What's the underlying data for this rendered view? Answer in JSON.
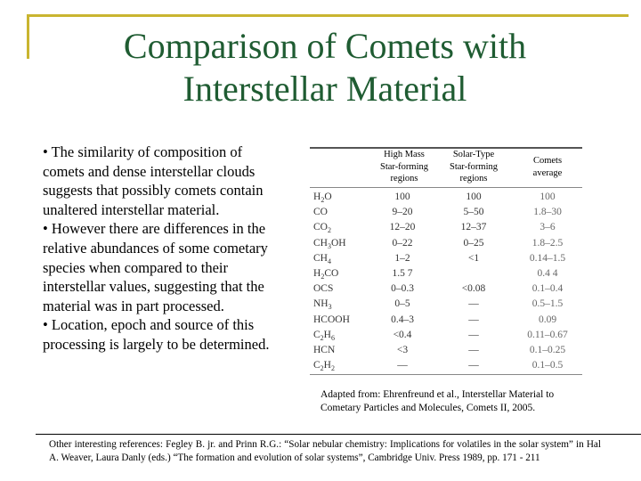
{
  "title": {
    "line1": "Comparison of Comets with",
    "line2": "Interstellar Material"
  },
  "bullets": [
    "• The similarity of composition of comets and dense interstellar clouds suggests that possibly comets contain unaltered interstellar material.",
    "• However there are differences in the relative abundances of some cometary species when compared to their interstellar values, suggesting that the material was in part processed.",
    "• Location, epoch and source of this processing is largely to be determined."
  ],
  "table": {
    "headers": {
      "high_mass": [
        "High Mass",
        "Star-forming",
        "regions"
      ],
      "solar_type": [
        "Solar-Type",
        "Star-forming",
        "regions"
      ],
      "comets": [
        "Comets",
        "average"
      ]
    },
    "rows": [
      {
        "species": "H",
        "sub": "2",
        "suffix": "O",
        "high_mass": "100",
        "solar_type": "100",
        "comets": "100"
      },
      {
        "species": "CO",
        "sub": "",
        "suffix": "",
        "high_mass": "9–20",
        "solar_type": "5–50",
        "comets": "1.8–30"
      },
      {
        "species": "CO",
        "sub": "2",
        "suffix": "",
        "high_mass": "12–20",
        "solar_type": "12–37",
        "comets": "3–6"
      },
      {
        "species": "CH",
        "sub": "3",
        "suffix": "OH",
        "high_mass": "0–22",
        "solar_type": "0–25",
        "comets": "1.8–2.5"
      },
      {
        "species": "CH",
        "sub": "4",
        "suffix": "",
        "high_mass": "1–2",
        "solar_type": "<1",
        "comets": "0.14–1.5"
      },
      {
        "species": "H",
        "sub": "2",
        "suffix": "CO",
        "high_mass": "1.5  7",
        "solar_type": "",
        "comets": "0.4  4"
      },
      {
        "species": "OCS",
        "sub": "",
        "suffix": "",
        "high_mass": "0–0.3",
        "solar_type": "<0.08",
        "comets": "0.1–0.4"
      },
      {
        "species": "NH",
        "sub": "3",
        "suffix": "",
        "high_mass": "0–5",
        "solar_type": "—",
        "comets": "0.5–1.5"
      },
      {
        "species": "HCOOH",
        "sub": "",
        "suffix": "",
        "high_mass": "0.4–3",
        "solar_type": "—",
        "comets": "0.09"
      },
      {
        "species": "C",
        "sub": "2",
        "suffix": "H",
        "sub2": "6",
        "high_mass": "<0.4",
        "solar_type": "—",
        "comets": "0.11–0.67"
      },
      {
        "species": "HCN",
        "sub": "",
        "suffix": "",
        "high_mass": "<3",
        "solar_type": "—",
        "comets": "0.1–0.25"
      },
      {
        "species": "C",
        "sub": "2",
        "suffix": "H",
        "sub2": "2",
        "high_mass": "—",
        "solar_type": "—",
        "comets": "0.1–0.5"
      }
    ]
  },
  "caption": "Adapted from: Ehrenfreund et al., Interstellar Material to Cometary Particles and Molecules, Comets II, 2005.",
  "footer": "Other interesting references: Fegley B. jr. and Prinn R.G.: “Solar nebular chemistry: Implications for volatiles in the solar system” in Hal A. Weaver, Laura Danly (eds.) “The formation and evolution of solar systems”, Cambridge Univ. Press 1989, pp. 171 - 211"
}
